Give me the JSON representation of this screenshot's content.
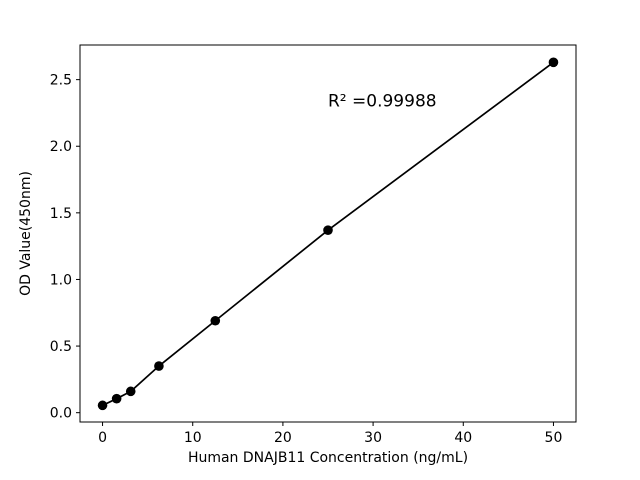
{
  "figure": {
    "background": "#ffffff",
    "plot_background": "#ffffff",
    "axis_color": "#000000"
  },
  "chart_data": {
    "type": "scatter",
    "title": "",
    "xlabel": "Human DNAJB11 Concentration (ng/mL)",
    "ylabel": "OD Value(450nm)",
    "x": [
      0,
      1.5625,
      3.125,
      6.25,
      12.5,
      25,
      50
    ],
    "y": [
      0.055,
      0.105,
      0.16,
      0.35,
      0.69,
      1.37,
      2.63
    ],
    "series_name": "standard-curve",
    "line": true,
    "marker": "circle",
    "color": "#000000",
    "annotation": {
      "text": "R² =0.99988",
      "x": 25,
      "y": 2.3
    },
    "xlim": [
      -2.5,
      52.5
    ],
    "ylim": [
      -0.07,
      2.76
    ],
    "xticks": [
      "0",
      "10",
      "20",
      "30",
      "40",
      "50"
    ],
    "yticks": [
      "0.0",
      "0.5",
      "1.0",
      "1.5",
      "2.0",
      "2.5"
    ],
    "grid": false,
    "legend_position": "none"
  }
}
